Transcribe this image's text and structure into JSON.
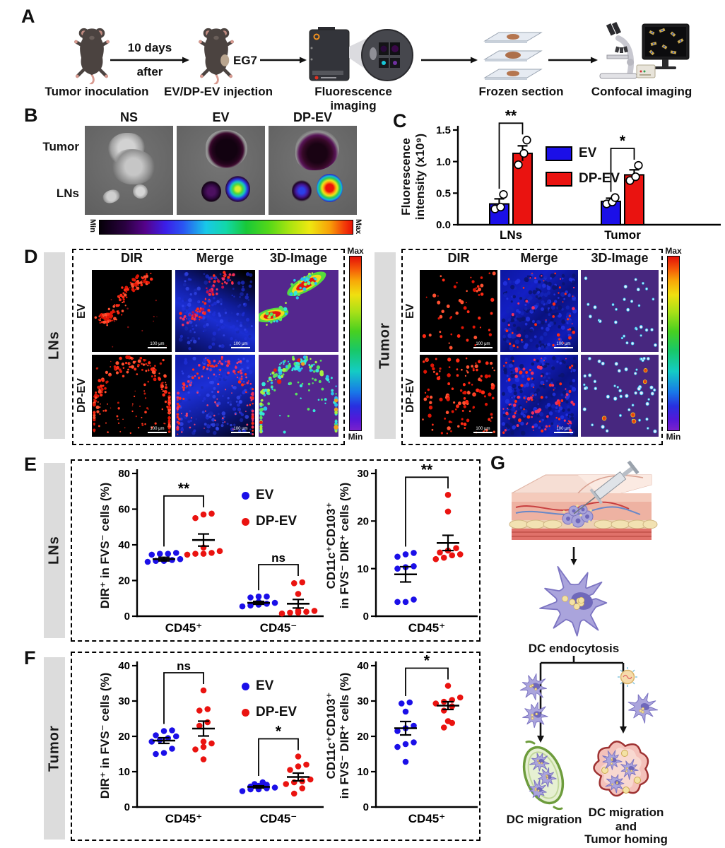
{
  "colors": {
    "ev": "#1b0fe8",
    "dpev": "#ea1310",
    "sidebar": "#dcdcdc"
  },
  "panel_a": {
    "label": "A",
    "step1": "Tumor inoculation",
    "arrow1_line1": "10 days",
    "arrow1_line2": "after",
    "step2": "EV/DP-EV injection",
    "eg7": "EG7",
    "step3": "Fluorescence imaging",
    "step4": "Frozen section",
    "step5": "Confocal imaging"
  },
  "panel_b": {
    "label": "B",
    "columns": [
      "NS",
      "EV",
      "DP-EV"
    ],
    "row_top": "Tumor",
    "row_bottom": "LNs",
    "colorbar_min": "Min",
    "colorbar_max": "Max"
  },
  "panel_c": {
    "label": "C",
    "ylabel_line1": "Fluorescence",
    "ylabel_line2": "intensity (x10⁹)"
  },
  "panel_d": {
    "label": "D",
    "left_side": "LNs",
    "right_side": "Tumor",
    "columns": [
      "DIR",
      "Merge",
      "3D-Image"
    ],
    "rows": [
      "EV",
      "DP-EV"
    ],
    "colorbar_max": "Max",
    "colorbar_min": "Min",
    "scale_bar": "100 μm"
  },
  "panel_e": {
    "label": "E",
    "side": "LNs"
  },
  "panel_f": {
    "label": "F",
    "side": "Tumor"
  },
  "panel_g": {
    "label": "G",
    "caption_endocytosis": "DC endocytosis",
    "caption_migration": "DC migration",
    "caption_homing_1": "DC migration",
    "caption_homing_2": "and",
    "caption_homing_3": "Tumor homing"
  },
  "chart_data": [
    {
      "id": "c_bar",
      "type": "bar",
      "ylabel": "Fluorescence intensity (x10⁹)",
      "categories": [
        "LNs",
        "Tumor"
      ],
      "ylim": [
        0,
        1.5
      ],
      "yticks": [
        0,
        0.5,
        1,
        1.5
      ],
      "series": [
        {
          "name": "EV",
          "color": "#1b0fe8",
          "values": [
            0.33,
            0.37
          ],
          "errors": [
            0.08,
            0.05
          ],
          "points": [
            [
              0.25,
              0.28,
              0.48
            ],
            [
              0.33,
              0.36,
              0.43
            ]
          ]
        },
        {
          "name": "DP-EV",
          "color": "#ea1310",
          "values": [
            1.13,
            0.79
          ],
          "errors": [
            0.12,
            0.08
          ],
          "points": [
            [
              0.95,
              1.13,
              1.34
            ],
            [
              0.7,
              0.76,
              0.94
            ]
          ]
        }
      ],
      "significance": [
        {
          "category": "LNs",
          "label": "**"
        },
        {
          "category": "Tumor",
          "label": "*"
        }
      ],
      "legend": [
        "EV",
        "DP-EV"
      ]
    },
    {
      "id": "e_left",
      "type": "scatter",
      "ylabel": "DIR⁺ in FVS⁻ cells (%)",
      "categories": [
        "CD45⁺",
        "CD45⁻"
      ],
      "ylim": [
        0,
        80
      ],
      "yticks": [
        0,
        20,
        40,
        60,
        80
      ],
      "groups": [
        {
          "category": "CD45⁺",
          "series": "EV",
          "color": "#1b0fe8",
          "points": [
            30.5,
            31,
            31,
            31.5,
            32,
            34.5,
            35,
            35,
            35.5
          ],
          "mean": 32,
          "sem": 1
        },
        {
          "category": "CD45⁺",
          "series": "DP-EV",
          "color": "#ea1310",
          "points": [
            34.5,
            35,
            35,
            35.5,
            36.5,
            38.5,
            55,
            57,
            57.5
          ],
          "mean": 42.7,
          "sem": 3.4
        },
        {
          "category": "CD45⁻",
          "series": "EV",
          "color": "#1b0fe8",
          "points": [
            5.5,
            6,
            6.5,
            7,
            7.5,
            8,
            10.5,
            11,
            11
          ],
          "mean": 7.5,
          "sem": 0.8
        },
        {
          "category": "CD45⁻",
          "series": "DP-EV",
          "color": "#ea1310",
          "points": [
            1.5,
            2,
            2,
            2.5,
            3,
            3,
            12.5,
            18.5,
            19
          ],
          "mean": 7,
          "sem": 2.4
        }
      ],
      "significance": [
        {
          "pair": [
            0,
            1
          ],
          "label": "**"
        },
        {
          "pair": [
            2,
            3
          ],
          "label": "ns"
        }
      ],
      "legend": [
        "EV",
        "DP-EV"
      ]
    },
    {
      "id": "e_right",
      "type": "scatter",
      "ylabel": "CD11c⁺CD103⁺ in FVS⁻ DIR⁺ cells (%)",
      "ylabel_line1": "CD11c⁺CD103⁺",
      "ylabel_line2": "in FVS⁻ DIR⁺ cells (%)",
      "categories": [
        "CD45⁺"
      ],
      "ylim": [
        0,
        30
      ],
      "yticks": [
        0,
        10,
        20,
        30
      ],
      "groups": [
        {
          "category": "CD45⁺",
          "series": "EV",
          "color": "#1b0fe8",
          "points": [
            3,
            3,
            3.5,
            10,
            10.3,
            10.5,
            12.5,
            13,
            13.3
          ],
          "mean": 8.8,
          "sem": 1.6
        },
        {
          "category": "CD45⁺",
          "series": "DP-EV",
          "color": "#ea1310",
          "points": [
            12,
            12.3,
            12.8,
            13,
            13.4,
            13.8,
            14.3,
            22,
            25.5
          ],
          "mean": 15.4,
          "sem": 1.6
        }
      ],
      "significance": [
        {
          "pair": [
            0,
            1
          ],
          "label": "**"
        }
      ]
    },
    {
      "id": "f_left",
      "type": "scatter",
      "ylabel": "DIR⁺ in FVS⁻ cells (%)",
      "categories": [
        "CD45⁺",
        "CD45⁻"
      ],
      "ylim": [
        0,
        40
      ],
      "yticks": [
        0,
        10,
        20,
        30,
        40
      ],
      "groups": [
        {
          "category": "CD45⁺",
          "series": "EV",
          "color": "#1b0fe8",
          "points": [
            15,
            15.3,
            16.5,
            18.5,
            19,
            19.5,
            20,
            20.3,
            21.5,
            21.7
          ],
          "mean": 18.8,
          "sem": 0.8
        },
        {
          "category": "CD45⁺",
          "series": "DP-EV",
          "color": "#ea1310",
          "points": [
            13.5,
            16.3,
            17,
            18,
            18.5,
            23,
            24,
            27.3,
            27.7,
            33
          ],
          "mean": 22.2,
          "sem": 2.1
        },
        {
          "category": "CD45⁻",
          "series": "EV",
          "color": "#1b0fe8",
          "points": [
            4.5,
            5,
            5,
            5.3,
            5.5,
            5.8,
            6,
            6.3,
            6.5,
            7
          ],
          "mean": 5.7,
          "sem": 0.3
        },
        {
          "category": "CD45⁻",
          "series": "DP-EV",
          "color": "#ea1310",
          "points": [
            3.8,
            5.3,
            6.5,
            7,
            7.3,
            7.8,
            10.5,
            11.5,
            12,
            14.3
          ],
          "mean": 8.5,
          "sem": 1.1
        }
      ],
      "significance": [
        {
          "pair": [
            0,
            1
          ],
          "label": "ns"
        },
        {
          "pair": [
            2,
            3
          ],
          "label": "*"
        }
      ],
      "legend": [
        "EV",
        "DP-EV"
      ]
    },
    {
      "id": "f_right",
      "type": "scatter",
      "ylabel": "CD11c⁺CD103⁺ in FVS⁻ DIR⁺ cells (%)",
      "ylabel_line1": "CD11c⁺CD103⁺",
      "ylabel_line2": "in FVS⁻ DIR⁺ cells (%)",
      "categories": [
        "CD45⁺"
      ],
      "ylim": [
        0,
        40
      ],
      "yticks": [
        0,
        10,
        20,
        30,
        40
      ],
      "groups": [
        {
          "category": "CD45⁺",
          "series": "EV",
          "color": "#1b0fe8",
          "points": [
            12.8,
            17,
            17.8,
            18.3,
            21.5,
            22.3,
            23,
            27,
            29.3,
            29.6
          ],
          "mean": 22.3,
          "sem": 1.9
        },
        {
          "category": "CD45⁺",
          "series": "DP-EV",
          "color": "#ea1310",
          "points": [
            22.5,
            23.8,
            24.3,
            27.3,
            28.5,
            29.3,
            29.8,
            30.3,
            31,
            34.3
          ],
          "mean": 28.7,
          "sem": 1.1
        }
      ],
      "significance": [
        {
          "pair": [
            0,
            1
          ],
          "label": "*"
        }
      ]
    }
  ]
}
